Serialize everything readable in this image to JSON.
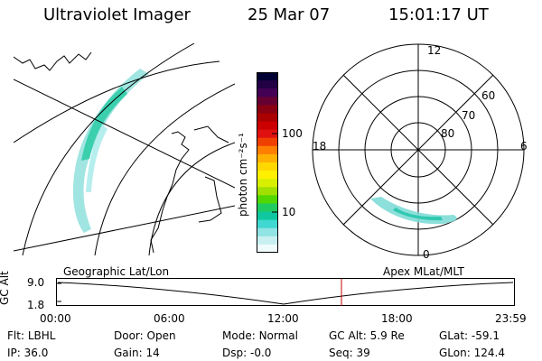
{
  "header": {
    "title": "Ultraviolet Imager",
    "date": "25 Mar 07",
    "time": "15:01:17 UT"
  },
  "colorbar": {
    "unit_label": "photon cm⁻²s⁻¹",
    "ticks": [
      "100",
      "10"
    ],
    "colors": [
      "#000033",
      "#220044",
      "#440055",
      "#660033",
      "#880011",
      "#aa0000",
      "#cc0000",
      "#e01010",
      "#f04000",
      "#ff8000",
      "#ffb000",
      "#ffd800",
      "#fff000",
      "#d8f000",
      "#a0e000",
      "#50d800",
      "#20cc60",
      "#10c8a0",
      "#40d8d0",
      "#90e4e4",
      "#c8f0f0",
      "#f0fbfb"
    ]
  },
  "left_panel": {
    "label": "Geographic Lat/Lon"
  },
  "right_panel": {
    "label": "Apex MLat/MLT",
    "mlt_labels": {
      "top": "12",
      "left": "18",
      "right": "6",
      "bottom": "0"
    },
    "lat_labels": [
      "60",
      "70",
      "80"
    ]
  },
  "altitude_plot": {
    "ylabel": "GC Alt",
    "yticks": [
      "9.0",
      "1.8"
    ],
    "xticks": [
      "00:00",
      "06:00",
      "12:00",
      "18:00",
      "23:59"
    ],
    "marker_color": "#cc0000"
  },
  "status": {
    "row1": [
      {
        "label": "Flt:",
        "value": "LBHL"
      },
      {
        "label": "Door:",
        "value": "Open"
      },
      {
        "label": "Mode:",
        "value": "Normal"
      },
      {
        "label": "GC Alt:",
        "value": "5.9 Re"
      },
      {
        "label": "GLat:",
        "value": "-59.1"
      }
    ],
    "row2": [
      {
        "label": "IP:",
        "value": "36.0"
      },
      {
        "label": "Gain:",
        "value": "14"
      },
      {
        "label": "Dsp:",
        "value": "-0.0"
      },
      {
        "label": "Seq:",
        "value": "39"
      },
      {
        "label": "GLon:",
        "value": "124.4"
      }
    ]
  }
}
